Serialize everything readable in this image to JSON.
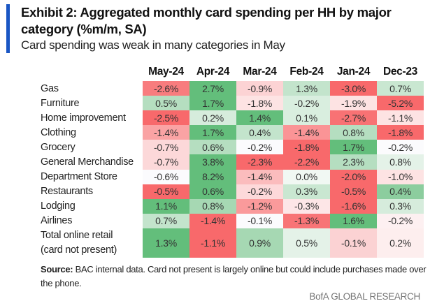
{
  "title": "Exhibit 2: Aggregated monthly card spending per HH by major category (%m/m, SA)",
  "subtitle": "Card spending was weak in many categories in May",
  "accent_color": "#1a56c4",
  "chart_data": {
    "type": "heatmap",
    "columns": [
      "May-24",
      "Apr-24",
      "Mar-24",
      "Feb-24",
      "Jan-24",
      "Dec-23"
    ],
    "rows": [
      {
        "label": "Gas",
        "values": [
          "-2.6%",
          "2.7%",
          "-0.9%",
          "1.3%",
          "-3.0%",
          "0.7%"
        ],
        "colors": [
          "#f87c7e",
          "#63be7b",
          "#fcd3d4",
          "#c3e4cc",
          "#f8696b",
          "#c9e7d1"
        ]
      },
      {
        "label": "Furniture",
        "values": [
          "0.5%",
          "1.7%",
          "-1.8%",
          "-0.2%",
          "-1.9%",
          "-5.2%"
        ],
        "colors": [
          "#b5dec0",
          "#63be7b",
          "#fde3e3",
          "#d9eedf",
          "#fde3e3",
          "#f8696b"
        ]
      },
      {
        "label": "Home improvement",
        "values": [
          "-2.5%",
          "0.2%",
          "1.4%",
          "0.1%",
          "-2.7%",
          "-1.1%"
        ],
        "colors": [
          "#f8696b",
          "#d6ecdc",
          "#63be7b",
          "#d9eedf",
          "#f87274",
          "#fde3e3"
        ]
      },
      {
        "label": "Clothing",
        "values": [
          "-1.4%",
          "1.7%",
          "0.4%",
          "-1.4%",
          "0.8%",
          "-1.8%"
        ],
        "colors": [
          "#faa3a4",
          "#63be7b",
          "#c3e4cc",
          "#fa9496",
          "#b5dec0",
          "#f8696b"
        ]
      },
      {
        "label": "Grocery",
        "values": [
          "-0.7%",
          "0.6%",
          "-0.2%",
          "-1.8%",
          "1.7%",
          "-0.2%"
        ],
        "colors": [
          "#fcd8d9",
          "#b5dec0",
          "#fbfbfd",
          "#f8696b",
          "#63be7b",
          "#fbfbfd"
        ]
      },
      {
        "label": "General Merchandise",
        "values": [
          "-0.7%",
          "3.8%",
          "-2.3%",
          "-2.2%",
          "2.3%",
          "0.8%"
        ],
        "colors": [
          "#fcd8d9",
          "#63be7b",
          "#f8696b",
          "#f8696b",
          "#b5dec0",
          "#e4f2e8"
        ]
      },
      {
        "label": "Department Store",
        "values": [
          "-0.6%",
          "8.2%",
          "-1.4%",
          "0.0%",
          "-2.0%",
          "-1.0%"
        ],
        "colors": [
          "#fbfbfd",
          "#63be7b",
          "#fbbcbd",
          "#f1f8f3",
          "#f8696b",
          "#fde3e3"
        ]
      },
      {
        "label": "Restaurants",
        "values": [
          "-0.5%",
          "0.6%",
          "-0.2%",
          "0.3%",
          "-0.5%",
          "0.4%"
        ],
        "colors": [
          "#f8696b",
          "#63be7b",
          "#fdd9da",
          "#c9e7d1",
          "#f8696b",
          "#8ccd9e"
        ]
      },
      {
        "label": "Lodging",
        "values": [
          "1.1%",
          "0.8%",
          "-1.2%",
          "-0.3%",
          "-1.6%",
          "0.3%"
        ],
        "colors": [
          "#63be7b",
          "#a6d8b3",
          "#fa9a9b",
          "#fde6e7",
          "#f8696b",
          "#d6ecdc"
        ]
      },
      {
        "label": "Airlines",
        "values": [
          "0.7%",
          "-1.4%",
          "-0.1%",
          "-1.3%",
          "1.6%",
          "-0.2%"
        ],
        "colors": [
          "#c3e4cc",
          "#f8696b",
          "#fbfbfd",
          "#f87476",
          "#63be7b",
          "#fdf0f1"
        ]
      },
      {
        "label": "Total online retail\n(card not present)",
        "values": [
          "1.3%",
          "-1.1%",
          "0.9%",
          "0.5%",
          "-0.1%",
          "0.2%"
        ],
        "colors": [
          "#63be7b",
          "#f8696b",
          "#a6d8b3",
          "#e4f2e8",
          "#fbd2d3",
          "#fdeeee"
        ]
      }
    ]
  },
  "source_label": "Source:",
  "source_text": " BAC internal data. Card not present is largely online but could include purchases made over the phone.",
  "brand": "BofA GLOBAL RESEARCH"
}
